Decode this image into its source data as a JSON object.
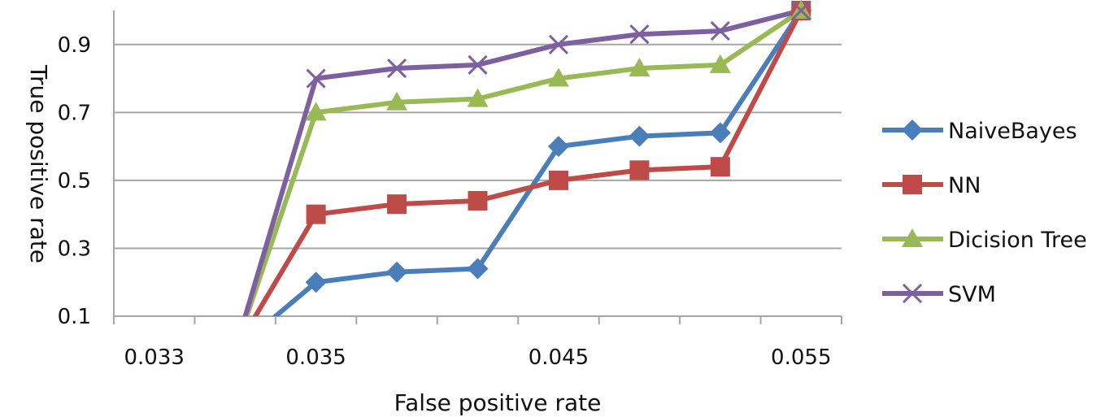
{
  "chart_data": {
    "type": "line",
    "xlabel": "False positive rate",
    "ylabel": "True positive rate",
    "categories": [
      "0.033",
      "",
      "0.035",
      "",
      "",
      "0.045",
      "",
      "",
      "0.055"
    ],
    "ylim": [
      0.1,
      1.0
    ],
    "yticks": [
      "0.1",
      "0.3",
      "0.5",
      "0.7",
      "0.9"
    ],
    "ytick_values": [
      0.1,
      0.3,
      0.5,
      0.7,
      0.9
    ],
    "grid": true,
    "legend": "right",
    "series": [
      {
        "name": "NaiveBayes",
        "color": "#4a7ebb",
        "marker": "diamond",
        "values": [
          null,
          0,
          0.2,
          0.23,
          0.24,
          0.6,
          0.63,
          0.64,
          1.0
        ]
      },
      {
        "name": "NN",
        "color": "#be4b48",
        "marker": "square",
        "values": [
          null,
          0,
          0.4,
          0.43,
          0.44,
          0.5,
          0.53,
          0.54,
          1.0
        ]
      },
      {
        "name": "Dicision Tree",
        "color": "#98b954",
        "marker": "triangle",
        "values": [
          null,
          0,
          0.7,
          0.73,
          0.74,
          0.8,
          0.83,
          0.84,
          1.0
        ]
      },
      {
        "name": "SVM",
        "color": "#7d60a0",
        "marker": "x",
        "values": [
          null,
          0,
          0.8,
          0.83,
          0.84,
          0.9,
          0.93,
          0.94,
          1.0
        ]
      }
    ]
  }
}
